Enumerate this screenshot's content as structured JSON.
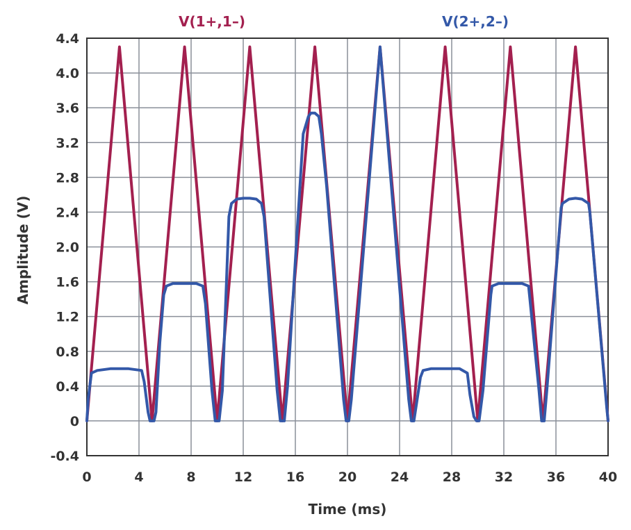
{
  "chart_data": {
    "type": "line",
    "xlabel": "Time (ms)",
    "ylabel": "Amplitude (V)",
    "xlim": [
      0,
      40
    ],
    "ylim": [
      -0.4,
      4.4
    ],
    "grid": true,
    "x_ticks": [
      0,
      4,
      8,
      12,
      16,
      20,
      24,
      28,
      32,
      36,
      40
    ],
    "x_tick_labels": [
      "0",
      "4",
      "8",
      "12",
      "16",
      "20",
      "24",
      "28",
      "32",
      "36",
      "40"
    ],
    "y_ticks": [
      -0.4,
      0,
      0.4,
      0.8,
      1.2,
      1.6,
      2.0,
      2.4,
      2.8,
      3.2,
      3.6,
      4.0,
      4.4
    ],
    "y_tick_labels": [
      "-0.4",
      "0",
      "0.4",
      "0.8",
      "1.2",
      "1.6",
      "2.0",
      "2.4",
      "2.8",
      "3.2",
      "3.6",
      "4.0",
      "4.4"
    ],
    "series": [
      {
        "name": "V(1+,1–)",
        "color": "#a3204f",
        "x": [
          0,
          2.5,
          5,
          5,
          7.5,
          10,
          10,
          12.5,
          15,
          15,
          17.5,
          20,
          20,
          22.5,
          25,
          25,
          27.5,
          30,
          30,
          32.5,
          35,
          35,
          37.5,
          40
        ],
        "y": [
          0,
          4.3,
          0,
          0,
          4.3,
          0,
          0,
          4.3,
          0,
          0,
          4.3,
          0,
          0,
          4.3,
          0,
          0,
          4.3,
          0,
          0,
          4.3,
          0,
          0,
          4.3,
          0
        ]
      },
      {
        "name": "V(2+,2–)",
        "color": "#3358a8",
        "x": [
          0,
          0.1,
          0.35,
          0.8,
          1.8,
          2.5,
          3.2,
          4.2,
          4.4,
          4.7,
          4.85,
          5.15,
          5.3,
          5.6,
          5.9,
          6.1,
          6.6,
          7.5,
          8.4,
          8.9,
          9.1,
          9.6,
          9.85,
          10.15,
          10.4,
          10.9,
          11.1,
          11.5,
          12.0,
          12.5,
          13.0,
          13.4,
          13.6,
          14.6,
          14.85,
          15.15,
          15.4,
          16.6,
          17.0,
          17.2,
          17.5,
          17.8,
          18.0,
          18.4,
          19.7,
          19.9,
          20.1,
          20.3,
          22.5,
          24.7,
          24.9,
          25.1,
          25.3,
          25.6,
          25.8,
          26.4,
          27.5,
          28.6,
          29.2,
          29.4,
          29.7,
          29.9,
          30.1,
          30.4,
          31.0,
          31.1,
          31.6,
          32.5,
          33.4,
          33.9,
          34.0,
          34.7,
          34.9,
          35.1,
          35.3,
          36.4,
          36.5,
          37.0,
          37.5,
          38.0,
          38.5,
          38.6,
          39.9,
          40
        ],
        "y": [
          0,
          0.25,
          0.55,
          0.58,
          0.6,
          0.6,
          0.6,
          0.58,
          0.45,
          0.1,
          0,
          0,
          0.1,
          0.9,
          1.45,
          1.55,
          1.58,
          1.58,
          1.58,
          1.55,
          1.35,
          0.35,
          0,
          0,
          0.35,
          2.35,
          2.5,
          2.55,
          2.56,
          2.56,
          2.55,
          2.5,
          2.35,
          0.35,
          0,
          0,
          0.4,
          3.3,
          3.5,
          3.54,
          3.54,
          3.5,
          3.3,
          2.7,
          0.25,
          0,
          0,
          0.25,
          4.3,
          0.25,
          0,
          0,
          0.2,
          0.5,
          0.58,
          0.6,
          0.6,
          0.6,
          0.55,
          0.3,
          0.05,
          0,
          0,
          0.35,
          1.45,
          1.55,
          1.58,
          1.58,
          1.58,
          1.55,
          1.4,
          0.35,
          0,
          0,
          0.35,
          2.45,
          2.5,
          2.55,
          2.56,
          2.55,
          2.5,
          2.4,
          0.15,
          0
        ]
      }
    ]
  }
}
